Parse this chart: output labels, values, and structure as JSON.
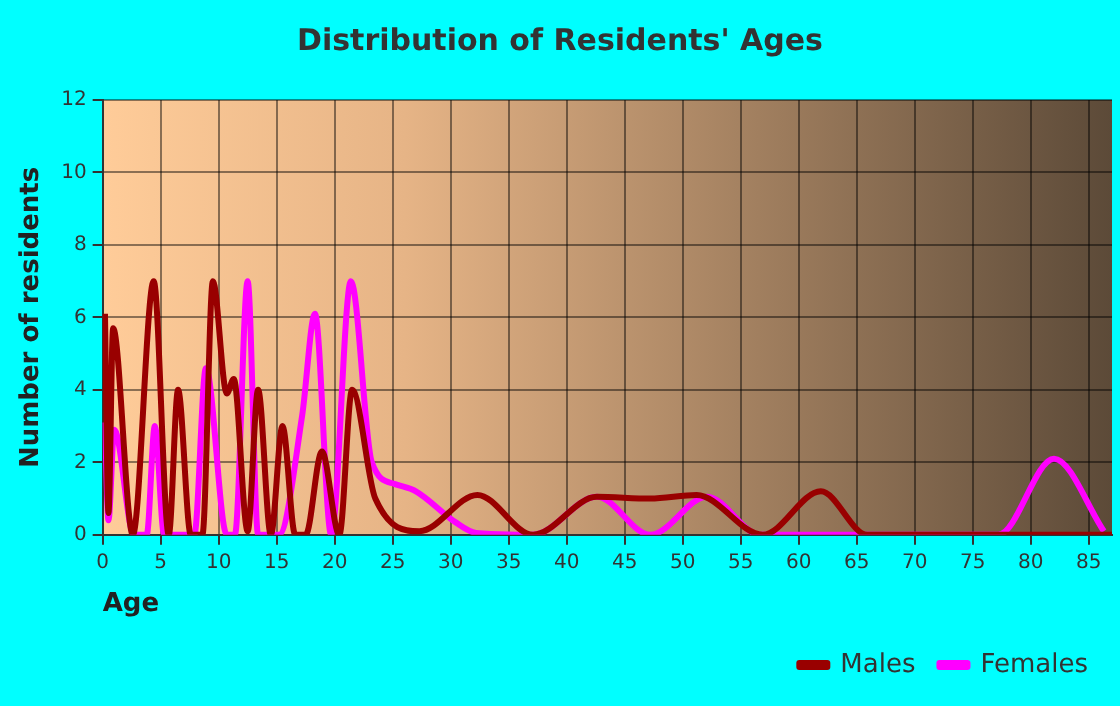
{
  "chart_data": {
    "type": "line",
    "title": "Distribution of Residents' Ages",
    "xlabel": "Age",
    "ylabel": "Number of residents",
    "xlim": [
      0,
      87
    ],
    "xticks": [
      0,
      5,
      10,
      15,
      20,
      25,
      30,
      35,
      40,
      45,
      50,
      55,
      60,
      65,
      70,
      75,
      80,
      85
    ],
    "ylim": [
      0,
      12
    ],
    "yticks": [
      0,
      2,
      4,
      6,
      8,
      10,
      12
    ],
    "grid": true,
    "legend": "bottom right",
    "marker": "none",
    "line_style": "solid",
    "series": [
      {
        "name": "Males",
        "color": "#990000",
        "x": [
          0.2,
          0.5,
          0.9,
          2.6,
          4.4,
          5.7,
          6.5,
          7.6,
          8.6,
          9.5,
          10.7,
          11.3,
          12.5,
          13.4,
          14.5,
          15.5,
          16.6,
          17.5,
          18.9,
          20.4,
          21.5,
          23.5,
          27.3,
          32.3,
          37.1,
          42.6,
          47.2,
          51.2,
          56.9,
          61.9,
          65.9,
          75,
          87
        ],
        "values": [
          6.1,
          0.6,
          5.7,
          0,
          7,
          0,
          4,
          0,
          0,
          7,
          3.9,
          4.3,
          0.1,
          4,
          0,
          3,
          0,
          0,
          2.3,
          0,
          4,
          1,
          0.1,
          1.1,
          0,
          1.05,
          1,
          1.1,
          0,
          1.2,
          0,
          0,
          0
        ]
      },
      {
        "name": "Females",
        "color": "#ff00ff",
        "x": [
          0.2,
          0.5,
          1,
          2.7,
          3.8,
          4.5,
          5.3,
          7.9,
          8.9,
          10.7,
          11.4,
          12.5,
          13.4,
          15.2,
          17.2,
          18.3,
          19.7,
          21.4,
          23.2,
          25.2,
          27,
          30.4,
          32.2,
          37.1,
          42.6,
          47.2,
          52.1,
          56.7,
          77.2,
          82,
          86.3
        ],
        "values": [
          3.1,
          0.4,
          2.9,
          0,
          0,
          3,
          0,
          0,
          4.6,
          0,
          0,
          7,
          0,
          0,
          3.3,
          6.1,
          0,
          7,
          2,
          1.4,
          1.2,
          0.35,
          0.05,
          0,
          1.05,
          0,
          1.05,
          0,
          0,
          2.1,
          0.1
        ]
      }
    ]
  }
}
